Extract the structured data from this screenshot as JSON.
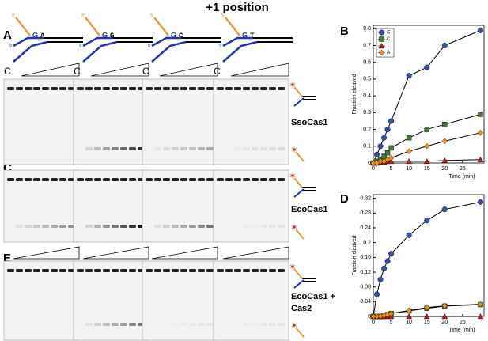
{
  "header": {
    "title": "+1 position"
  },
  "panels": {
    "A": "A",
    "C": "C",
    "E": "E"
  },
  "lane_label": "C",
  "diagrams": [
    {
      "five": "5'",
      "b1": "G",
      "b2": "A"
    },
    {
      "five": "5'",
      "b1": "G",
      "b2": "G"
    },
    {
      "five": "5'",
      "b1": "G",
      "b2": "C"
    },
    {
      "five": "5'",
      "b1": "G",
      "b2": "T"
    }
  ],
  "gel_labels": [
    "SsoCas1",
    "EcoCas1",
    "EcoCas1 +",
    "Cas2"
  ],
  "chart_data": [
    {
      "type": "line",
      "label": "B",
      "ylabel": "Fraction cleaved",
      "xlabel": "Time (min)",
      "x": [
        0,
        1,
        2,
        3,
        4,
        5,
        10,
        15,
        20,
        30
      ],
      "xlim": [
        0,
        31
      ],
      "xticks": [
        0,
        5,
        10,
        15,
        20,
        25
      ],
      "ylim": [
        0,
        0.82
      ],
      "yticks": [
        0,
        0.1,
        0.2,
        0.3,
        0.4,
        0.5,
        0.6,
        0.7,
        0.8
      ],
      "legend": "upper left",
      "series": [
        {
          "name": "G",
          "color": "#3352a8",
          "values": [
            0,
            0.05,
            0.1,
            0.15,
            0.2,
            0.25,
            0.52,
            0.57,
            0.7,
            0.79
          ]
        },
        {
          "name": "C",
          "color": "#3e7d32",
          "values": [
            0,
            0.01,
            0.02,
            0.04,
            0.06,
            0.09,
            0.15,
            0.2,
            0.23,
            0.29
          ]
        },
        {
          "name": "T",
          "color": "#b3201e",
          "values": [
            0,
            0,
            0.005,
            0.005,
            0.01,
            0.01,
            0.01,
            0.01,
            0.015,
            0.02
          ]
        },
        {
          "name": "A",
          "color": "#e8921e",
          "values": [
            0,
            0,
            0.01,
            0.01,
            0.02,
            0.03,
            0.07,
            0.1,
            0.13,
            0.18
          ]
        }
      ]
    },
    {
      "type": "line",
      "label": "D",
      "ylabel": "Fraction cleaved",
      "xlabel": "Time (min)",
      "x": [
        0,
        1,
        2,
        3,
        4,
        5,
        10,
        15,
        20,
        30
      ],
      "xlim": [
        0,
        31
      ],
      "xticks": [
        0,
        5,
        10,
        15,
        20,
        25
      ],
      "ylim": [
        0,
        0.33
      ],
      "yticks": [
        0,
        0.04,
        0.08,
        0.12,
        0.16,
        0.2,
        0.24,
        0.28,
        0.32
      ],
      "series": [
        {
          "name": "G",
          "color": "#3352a8",
          "values": [
            0,
            0.06,
            0.1,
            0.13,
            0.15,
            0.17,
            0.22,
            0.26,
            0.29,
            0.31
          ]
        },
        {
          "name": "C",
          "color": "#3e7d32",
          "values": [
            0,
            0,
            0,
            0.002,
            0.005,
            0.008,
            0.015,
            0.022,
            0.028,
            0.032
          ]
        },
        {
          "name": "T",
          "color": "#b3201e",
          "values": [
            0,
            0,
            0,
            0,
            0,
            0,
            0,
            0,
            0,
            0
          ]
        },
        {
          "name": "A",
          "color": "#e8921e",
          "values": [
            0,
            0,
            0.001,
            0.003,
            0.005,
            0.008,
            0.016,
            0.024,
            0.029,
            0.033
          ]
        }
      ]
    }
  ]
}
